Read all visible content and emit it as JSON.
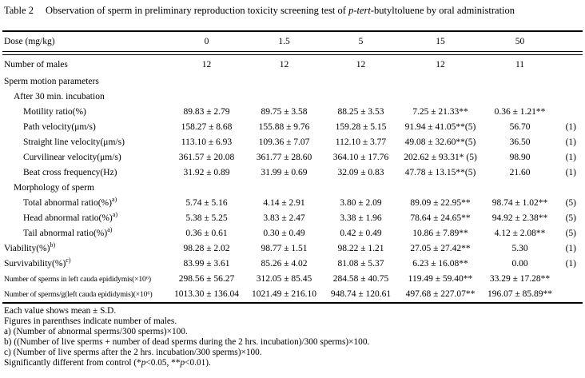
{
  "title": {
    "number": "Table 2",
    "segments": [
      {
        "t": "Observation of sperm in preliminary reproduction toxicity screening test of ",
        "i": false
      },
      {
        "t": "p-tert",
        "i": true
      },
      {
        "t": "-butyltoluene by oral administration",
        "i": false
      }
    ]
  },
  "table": {
    "header": {
      "label": "Dose (mg/kg)",
      "values": [
        "0",
        "1.5",
        "5",
        "15",
        "50"
      ]
    },
    "males": {
      "label": "Number of males",
      "values": [
        "12",
        "12",
        "12",
        "12",
        "11"
      ]
    },
    "rows": [
      {
        "type": "section",
        "indent": 0,
        "label": "Sperm motion parameters"
      },
      {
        "type": "section",
        "indent": 1,
        "label": "After 30 min. incubation"
      },
      {
        "type": "data",
        "indent": 2,
        "label": "Motility ratio(%)",
        "sup": "",
        "values": [
          "89.83 ± 2.79",
          "89.75 ± 3.58",
          "88.25 ± 3.53",
          "7.25 ± 21.33**",
          "0.36 ± 1.21**"
        ],
        "note": ""
      },
      {
        "type": "data",
        "indent": 2,
        "label": "Path velocity(μm/s)",
        "sup": "",
        "values": [
          "158.27 ± 8.68",
          "155.88 ± 9.76",
          "159.28 ± 5.15",
          "91.94 ± 41.05**(5)",
          "56.70"
        ],
        "note": "(1)"
      },
      {
        "type": "data",
        "indent": 2,
        "label": "Straight line velocity(μm/s)",
        "sup": "",
        "values": [
          "113.10 ± 6.93",
          "109.36 ± 7.07",
          "112.10 ± 3.77",
          "49.08 ± 32.60**(5)",
          "36.50"
        ],
        "note": "(1)"
      },
      {
        "type": "data",
        "indent": 2,
        "label": "Curvilinear velocity(μm/s)",
        "sup": "",
        "values": [
          "361.57 ± 20.08",
          "361.77 ± 28.60",
          "364.10 ± 17.76",
          "202.62 ± 93.31* (5)",
          "98.90"
        ],
        "note": "(1)"
      },
      {
        "type": "data",
        "indent": 2,
        "label": "Beat cross frequency(Hz)",
        "sup": "",
        "values": [
          "31.92 ± 0.89",
          "31.99 ± 0.69",
          "32.09 ± 0.83",
          "47.78 ± 13.15**(5)",
          "21.60"
        ],
        "note": "(1)"
      },
      {
        "type": "section",
        "indent": 1,
        "label": "Morphology of sperm"
      },
      {
        "type": "data",
        "indent": 2,
        "label": "Total abnormal ratio(%)",
        "sup": "a)",
        "values": [
          "5.74 ± 5.16",
          "4.14 ± 2.91",
          "3.80 ± 2.09",
          "89.09 ± 22.95**",
          "98.74 ± 1.02**"
        ],
        "note": "(5)"
      },
      {
        "type": "data",
        "indent": 2,
        "label": "Head abnormal ratio(%)",
        "sup": "a)",
        "values": [
          "5.38 ± 5.25",
          "3.83 ± 2.47",
          "3.38 ± 1.96",
          "78.64 ± 24.65**",
          "94.92 ± 2.38**"
        ],
        "note": "(5)"
      },
      {
        "type": "data",
        "indent": 2,
        "label": "Tail abnormal ratio(%)",
        "sup": "a)",
        "values": [
          "0.36 ± 0.61",
          "0.30 ± 0.49",
          "0.42 ± 0.49",
          "10.86 ± 7.89**",
          "4.12 ± 2.08**"
        ],
        "note": "(5)"
      },
      {
        "type": "data",
        "indent": 0,
        "label": "Viability(%)",
        "sup": "b)",
        "values": [
          "98.28 ± 2.02",
          "98.77 ± 1.51",
          "98.22 ± 1.21",
          "27.05 ± 27.42**",
          "5.30"
        ],
        "note": "(1)"
      },
      {
        "type": "data",
        "indent": 0,
        "label": "Survivability(%)",
        "sup": "c)",
        "values": [
          "83.99 ± 3.61",
          "85.26 ± 4.02",
          "81.08 ± 5.37",
          "6.23 ± 16.08**",
          "0.00"
        ],
        "note": "(1)"
      },
      {
        "type": "data",
        "indent": 0,
        "small": true,
        "label": "Number of sperms in left cauda epididymis(×10⁶)",
        "sup": "",
        "values": [
          "298.56 ± 56.27",
          "312.05 ± 85.45",
          "284.58 ± 40.75",
          "119.49 ± 59.40**",
          "33.29 ± 17.28**"
        ],
        "note": ""
      },
      {
        "type": "data",
        "indent": 0,
        "small": true,
        "label": "Number of sperms/g(left cauda epididymis)(×10⁶)",
        "sup": "",
        "values": [
          "1013.30 ± 136.04",
          "1021.49 ± 216.10",
          "948.74 ± 120.61",
          "497.68 ± 227.07**",
          "196.07 ± 85.89**"
        ],
        "note": ""
      }
    ]
  },
  "footnotes": [
    [
      {
        "t": "Each value shows mean ± S.D.",
        "i": false
      }
    ],
    [
      {
        "t": "Figures in parenthses indicate number of males.",
        "i": false
      }
    ],
    [
      {
        "t": "a) (Number of abnormal sperms/300 sperms)×100.",
        "i": false
      }
    ],
    [
      {
        "t": "b) ((Number of live sperms + number of dead sperms during the 2 hrs. incubation)/300 sperms)×100.",
        "i": false
      }
    ],
    [
      {
        "t": "c) (Number of live sperms after the 2 hrs. incubation/300 sperms)×100.",
        "i": false
      }
    ],
    [
      {
        "t": "Significantly different from control (*",
        "i": false
      },
      {
        "t": "p",
        "i": true
      },
      {
        "t": "<0.05, **",
        "i": false
      },
      {
        "t": "p",
        "i": true
      },
      {
        "t": "<0.01).",
        "i": false
      }
    ]
  ]
}
